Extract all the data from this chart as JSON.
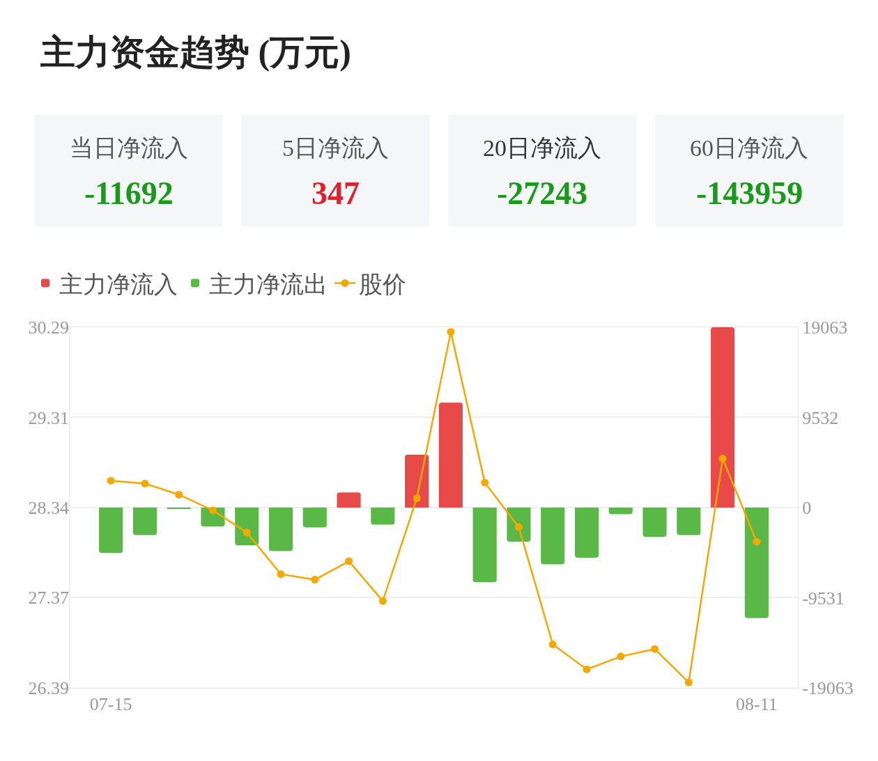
{
  "chart_data": [
    {
      "type": "other",
      "title": "主力资金趋势 (万元)",
      "annotations": [
        "当日净流入",
        "-11692",
        "5日净流入",
        "347",
        "20日净流入",
        "-27243",
        "60日净流入",
        "-143959"
      ],
      "colors": [
        "#555555",
        "#1a9a1a",
        "#555555",
        "#e0202a",
        "#333333",
        "#1a9a1a",
        "#555555",
        "#1a9a1a"
      ]
    },
    {
      "type": "bar",
      "categories": [
        "07-15",
        null,
        null,
        null,
        null,
        null,
        null,
        null,
        null,
        null,
        null,
        null,
        null,
        null,
        null,
        null,
        null,
        null,
        null,
        "08-11"
      ],
      "series": [
        {
          "name": "主力净流入",
          "color": "#e84a4a",
          "axis": "y2",
          "values": [
            null,
            null,
            null,
            null,
            null,
            null,
            null,
            1600,
            null,
            5600,
            11100,
            null,
            null,
            null,
            null,
            null,
            null,
            null,
            19063,
            null
          ]
        },
        {
          "name": "主力净流出",
          "color": "#5ab946",
          "axis": "y2",
          "values": [
            -4800,
            -2900,
            -100,
            -2000,
            -4000,
            -4600,
            -2100,
            null,
            -1800,
            null,
            null,
            -7900,
            -3600,
            -6000,
            -5300,
            -700,
            -3100,
            -2900,
            null,
            -11692
          ]
        },
        {
          "name": "股价",
          "type": "line",
          "color": "#f5a800",
          "marker": "circle",
          "values": [
            28.63,
            28.6,
            28.48,
            28.31,
            28.07,
            27.62,
            27.56,
            27.76,
            27.33,
            28.44,
            30.24,
            28.61,
            28.13,
            26.86,
            26.59,
            26.73,
            26.81,
            26.45,
            28.87,
            27.97
          ]
        }
      ],
      "ylim": [
        26.39,
        30.29
      ],
      "yticks": [
        30.29,
        29.31,
        28.34,
        27.37,
        26.39
      ],
      "y2lim": [
        -19063,
        19063
      ],
      "y2ticks": [
        19063,
        9532,
        0,
        -9531,
        -19063
      ],
      "grid": "y",
      "legend": "top left"
    }
  ]
}
